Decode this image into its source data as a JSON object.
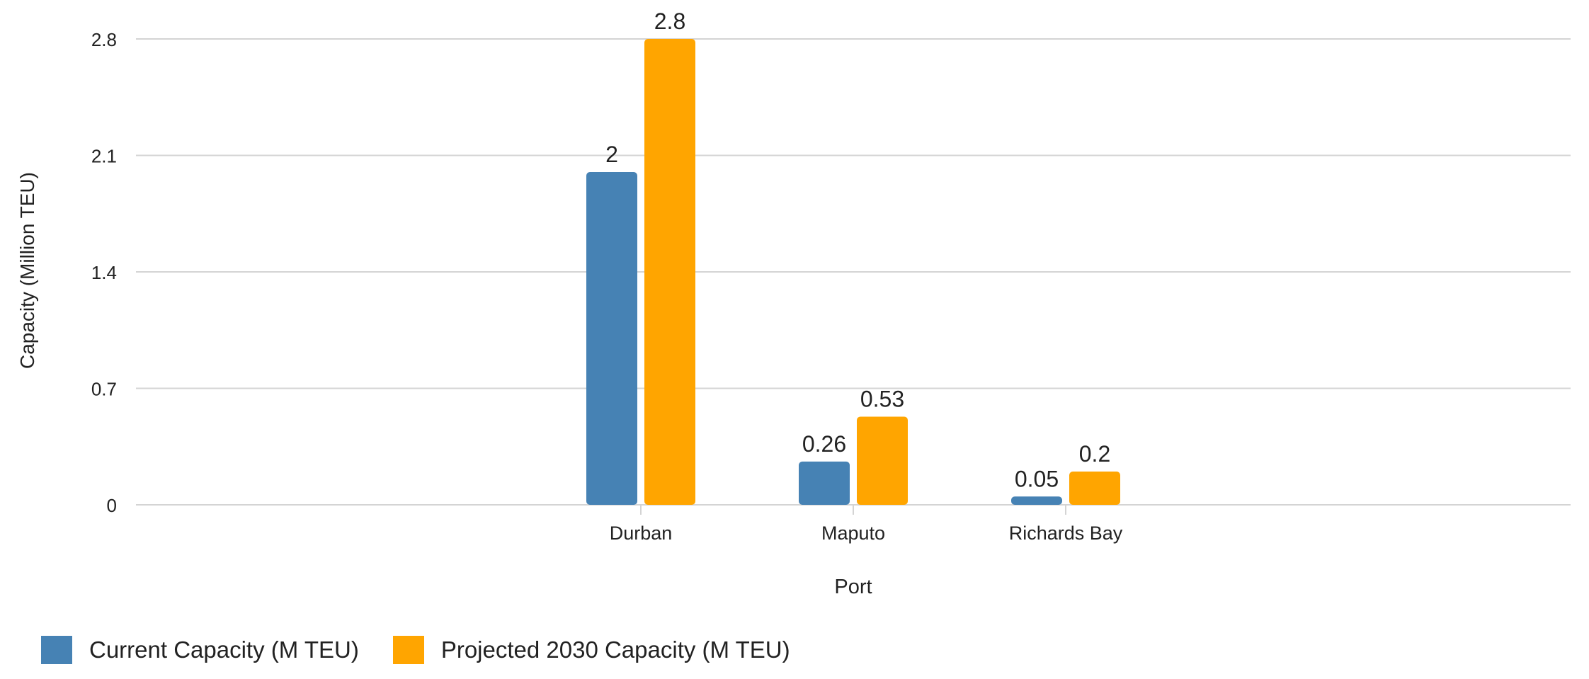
{
  "chart_data": {
    "type": "bar",
    "title": "",
    "xlabel": "Port",
    "ylabel": "Capacity (Million TEU)",
    "categories": [
      "Durban",
      "Maputo",
      "Richards Bay"
    ],
    "series": [
      {
        "name": "Current Capacity (M TEU)",
        "color": "#4682b4",
        "values": [
          2,
          0.26,
          0.05
        ],
        "labels": [
          "2",
          "0.26",
          "0.05"
        ]
      },
      {
        "name": "Projected 2030 Capacity (M TEU)",
        "color": "#ffa500",
        "values": [
          2.8,
          0.53,
          0.2
        ],
        "labels": [
          "2.8",
          "0.53",
          "0.2"
        ]
      }
    ],
    "ylim": [
      0,
      2.8
    ],
    "yticks": [
      0,
      0.7,
      1.4,
      2.1,
      2.8
    ],
    "ytick_labels": [
      "0",
      "0.7",
      "1.4",
      "2.1",
      "2.8"
    ],
    "grid": true,
    "legend_position": "bottom-left",
    "gridline_color": "#d4d4d4"
  }
}
